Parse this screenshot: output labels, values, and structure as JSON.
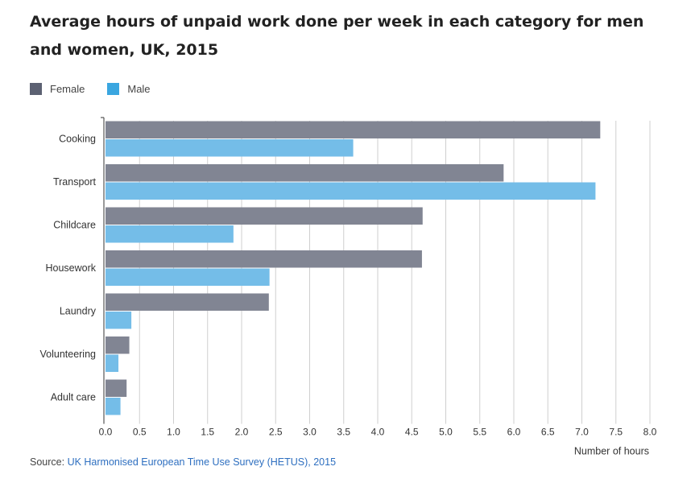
{
  "chart_data": {
    "type": "bar",
    "orientation": "horizontal",
    "title": "Average hours of unpaid work done per week in each category for men and women, UK, 2015",
    "categories": [
      "Cooking",
      "Transport",
      "Childcare",
      "Housework",
      "Laundry",
      "Volunteering",
      "Adult care"
    ],
    "series": [
      {
        "name": "Female",
        "color": "#818593",
        "values": [
          7.27,
          5.85,
          4.66,
          4.65,
          2.4,
          0.35,
          0.31
        ]
      },
      {
        "name": "Male",
        "color": "#74bde8",
        "values": [
          3.64,
          7.2,
          1.88,
          2.41,
          0.38,
          0.19,
          0.22
        ]
      }
    ],
    "xlabel": "Number of hours",
    "xlim": [
      0,
      8
    ],
    "xticks": [
      "0.0",
      "0.5",
      "1.0",
      "1.5",
      "2.0",
      "2.5",
      "3.0",
      "3.5",
      "4.0",
      "4.5",
      "5.0",
      "5.5",
      "6.0",
      "6.5",
      "7.0",
      "7.5",
      "8.0"
    ],
    "grid": true,
    "legend_position": "top-left"
  },
  "legend": {
    "female_label": "Female",
    "male_label": "Male",
    "female_color": "#5c6172",
    "male_color": "#3aa6e0"
  },
  "source": {
    "prefix": "Source: ",
    "link_text": "UK Harmonised European Time Use Survey (HETUS), 2015"
  }
}
